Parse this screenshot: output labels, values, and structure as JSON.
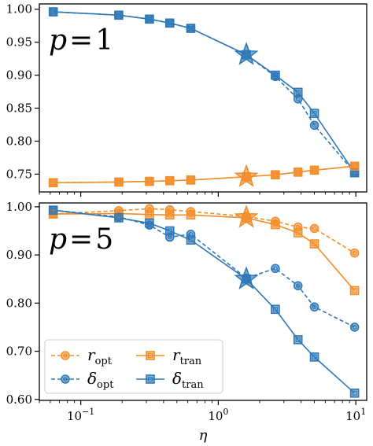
{
  "colors": {
    "orange": "#f28e2b",
    "blue": "#2f78b7",
    "axes": "#000000",
    "legend_edge": "#cccccc"
  },
  "chart_data": [
    {
      "type": "line",
      "panel_label": "p = 1",
      "panel_label_parts": [
        "p",
        "1"
      ],
      "xscale": "log",
      "xlim": [
        0.05,
        12
      ],
      "ylim": [
        0.723,
        1.008
      ],
      "yticks": [
        0.75,
        0.8,
        0.85,
        0.9,
        0.95,
        1.0
      ],
      "ytick_labels": [
        "0.75",
        "0.80",
        "0.85",
        "0.90",
        "0.95",
        "1.00"
      ],
      "series": [
        {
          "key": "delta_opt",
          "color": "blue",
          "style": "dashed",
          "marker": "circle",
          "x": [
            0.0631,
            0.189,
            0.316,
            0.444,
            0.631,
            1.6,
            2.6,
            3.8,
            5.0,
            9.8
          ],
          "y": [
            0.996,
            0.991,
            0.985,
            0.979,
            0.971,
            0.931,
            0.898,
            0.864,
            0.824,
            0.752
          ]
        },
        {
          "key": "r_opt",
          "color": "orange",
          "style": "dashed",
          "marker": "circle",
          "x": [
            0.0631,
            0.189,
            0.316,
            0.444,
            0.631,
            1.6,
            2.6,
            3.8,
            5.0,
            9.8
          ],
          "y": [
            0.737,
            0.738,
            0.739,
            0.74,
            0.741,
            0.746,
            0.749,
            0.753,
            0.756,
            0.762
          ]
        },
        {
          "key": "delta_tran",
          "color": "blue",
          "style": "solid",
          "marker": "square",
          "x": [
            0.0631,
            0.189,
            0.316,
            0.444,
            0.631,
            1.6,
            2.6,
            3.8,
            5.0,
            9.8
          ],
          "y": [
            0.996,
            0.991,
            0.985,
            0.979,
            0.971,
            0.931,
            0.9,
            0.874,
            0.842,
            0.752
          ]
        },
        {
          "key": "r_tran",
          "color": "orange",
          "style": "solid",
          "marker": "square",
          "x": [
            0.0631,
            0.189,
            0.316,
            0.444,
            0.631,
            1.6,
            2.6,
            3.8,
            5.0,
            9.8
          ],
          "y": [
            0.737,
            0.738,
            0.739,
            0.74,
            0.741,
            0.746,
            0.749,
            0.753,
            0.756,
            0.762
          ]
        }
      ],
      "stars": [
        {
          "color": "blue",
          "x": 1.6,
          "y": 0.931
        },
        {
          "color": "orange",
          "x": 1.6,
          "y": 0.746
        }
      ]
    },
    {
      "type": "line",
      "panel_label": "p = 5",
      "panel_label_parts": [
        "p",
        "5"
      ],
      "xscale": "log",
      "xlim": [
        0.05,
        12
      ],
      "ylim": [
        0.598,
        1.008
      ],
      "yticks": [
        0.6,
        0.7,
        0.8,
        0.9,
        1.0
      ],
      "ytick_labels": [
        "0.60",
        "0.70",
        "0.80",
        "0.90",
        "1.00"
      ],
      "xticks": [
        0.1,
        1,
        10
      ],
      "xtick_labels": [
        [
          "10",
          "−1"
        ],
        [
          "10",
          "0"
        ],
        [
          "10",
          "1"
        ]
      ],
      "xlabel": "η",
      "series": [
        {
          "key": "r_opt",
          "color": "orange",
          "style": "dashed",
          "marker": "circle",
          "x": [
            0.0631,
            0.189,
            0.316,
            0.444,
            0.631,
            1.6,
            2.6,
            3.8,
            5.0,
            9.8
          ],
          "y": [
            0.985,
            0.992,
            0.996,
            0.994,
            0.99,
            0.98,
            0.97,
            0.958,
            0.955,
            0.904
          ]
        },
        {
          "key": "delta_opt",
          "color": "blue",
          "style": "dashed",
          "marker": "circle",
          "x": [
            0.0631,
            0.189,
            0.316,
            0.444,
            0.631,
            1.6,
            2.6,
            3.8,
            5.0,
            9.8
          ],
          "y": [
            0.993,
            0.979,
            0.962,
            0.937,
            0.943,
            0.852,
            0.872,
            0.836,
            0.792,
            0.75
          ]
        },
        {
          "key": "r_tran",
          "color": "orange",
          "style": "solid",
          "marker": "square",
          "x": [
            0.0631,
            0.189,
            0.316,
            0.444,
            0.631,
            1.6,
            2.6,
            3.8,
            5.0,
            9.8
          ],
          "y": [
            0.985,
            0.986,
            0.984,
            0.983,
            0.983,
            0.977,
            0.963,
            0.946,
            0.923,
            0.826
          ]
        },
        {
          "key": "delta_tran",
          "color": "blue",
          "style": "solid",
          "marker": "square",
          "x": [
            0.0631,
            0.189,
            0.316,
            0.444,
            0.631,
            1.6,
            2.6,
            3.8,
            5.0,
            9.8
          ],
          "y": [
            0.993,
            0.977,
            0.966,
            0.95,
            0.931,
            0.85,
            0.787,
            0.724,
            0.688,
            0.613
          ]
        }
      ],
      "stars": [
        {
          "color": "orange",
          "x": 1.6,
          "y": 0.978
        },
        {
          "color": "blue",
          "x": 1.6,
          "y": 0.85
        }
      ],
      "legend": {
        "placement": "lower-left",
        "entries": [
          {
            "key": "r_opt",
            "symbol": "r",
            "sub": "opt"
          },
          {
            "key": "delta_opt",
            "symbol": "δ",
            "sub": "opt"
          },
          {
            "key": "r_tran",
            "symbol": "r",
            "sub": "tran"
          },
          {
            "key": "delta_tran",
            "symbol": "δ",
            "sub": "tran"
          }
        ]
      }
    }
  ]
}
